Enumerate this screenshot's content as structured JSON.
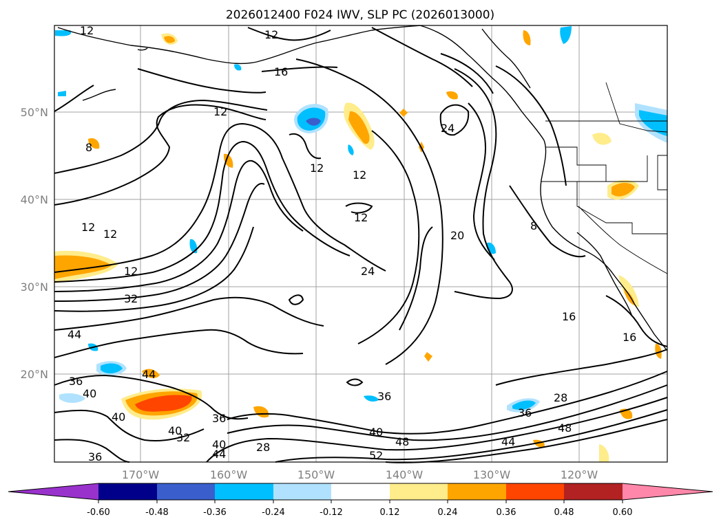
{
  "title": "2026012400 F024 IWV, SLP PC (2026013000)",
  "lat_labels": [
    "50°N",
    "40°N",
    "30°N",
    "20°N"
  ],
  "lon_labels": [
    "170°W",
    "160°W",
    "150°W",
    "140°W",
    "130°W",
    "120°W"
  ],
  "contour_labels": [
    "12",
    "12",
    "16",
    "12",
    "8",
    "12",
    "12",
    "12",
    "24",
    "20",
    "12",
    "12",
    "8",
    "12",
    "32",
    "24",
    "44",
    "36",
    "40",
    "44",
    "40",
    "36",
    "40",
    "32",
    "40",
    "44",
    "28",
    "40",
    "36",
    "48",
    "52",
    "36",
    "28",
    "44",
    "48",
    "16",
    "16",
    "36"
  ],
  "colorbar": {
    "ticks": [
      "-0.60",
      "-0.48",
      "-0.36",
      "-0.24",
      "-0.12",
      "0.12",
      "0.24",
      "0.36",
      "0.48",
      "0.60"
    ],
    "colors": [
      "#9932cc",
      "#00008b",
      "#3a5fcd",
      "#00bfff",
      "#b0e2ff",
      "#ffffff",
      "#ffec8b",
      "#ffa500",
      "#ff4500",
      "#b22222",
      "#ff88aa"
    ]
  }
}
